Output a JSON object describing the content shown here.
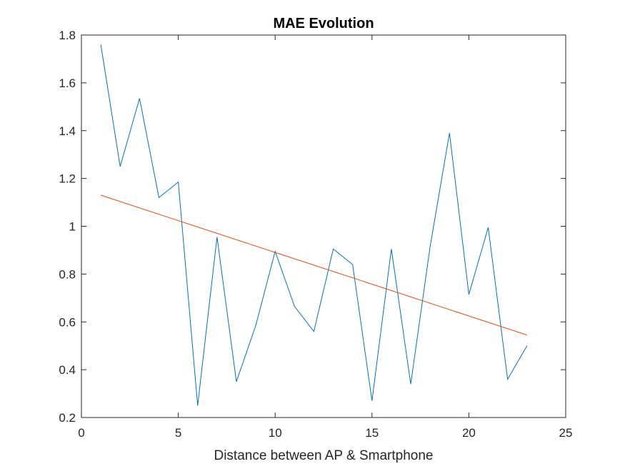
{
  "chart_data": {
    "type": "line",
    "title": "MAE Evolution",
    "xlabel": "Distance between AP & Smartphone",
    "ylabel": "",
    "xlim": [
      0,
      25
    ],
    "ylim": [
      0.2,
      1.8
    ],
    "xticks": [
      0,
      5,
      10,
      15,
      20,
      25
    ],
    "yticks": [
      0.2,
      0.4,
      0.6,
      0.8,
      1,
      1.2,
      1.4,
      1.6,
      1.8
    ],
    "xtick_labels": [
      "0",
      "5",
      "10",
      "15",
      "20",
      "25"
    ],
    "ytick_labels": [
      "0.2",
      "0.4",
      "0.6",
      "0.8",
      "1",
      "1.2",
      "1.4",
      "1.6",
      "1.8"
    ],
    "grid": false,
    "series": [
      {
        "color": "#0072BD",
        "x": [
          1,
          2,
          3,
          4,
          5,
          6,
          7,
          8,
          9,
          10,
          11,
          12,
          13,
          14,
          15,
          16,
          17,
          18,
          19,
          20,
          21,
          22,
          23
        ],
        "y": [
          1.76,
          1.25,
          1.535,
          1.12,
          1.185,
          0.25,
          0.955,
          0.35,
          0.585,
          0.895,
          0.665,
          0.56,
          0.905,
          0.84,
          0.27,
          0.905,
          0.34,
          0.915,
          1.39,
          0.715,
          0.995,
          0.36,
          0.5
        ]
      },
      {
        "color": "#D95319",
        "x": [
          1,
          23
        ],
        "y": [
          1.13,
          0.545
        ]
      }
    ]
  }
}
